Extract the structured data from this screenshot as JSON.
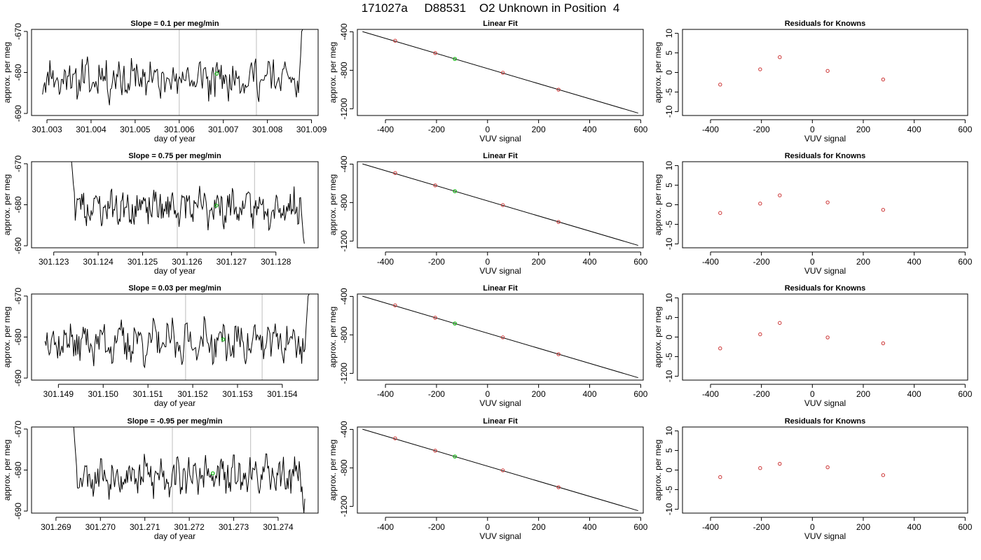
{
  "page_title": "171027a     D88531    O2 Unknown in Position  4",
  "colors": {
    "trace": "#000000",
    "fit_line": "#000000",
    "known_points": "#cc3333",
    "unknown_point": "#22bb22",
    "marker_lines": "#c8c8c8",
    "axes": "#000000"
  },
  "chart_data": [
    {
      "type": "line",
      "row": 1,
      "title": "Slope =  0.1  per meg/min",
      "xlabel": "day of year",
      "ylabel": "approx. per meg",
      "xlim": [
        301.00265,
        301.00915
      ],
      "ylim": [
        -690.5,
        -669.5
      ],
      "xticks": [
        "301.003",
        "301.004",
        "301.005",
        "301.006",
        "301.007",
        "301.008",
        "301.009"
      ],
      "yticks": [
        "-670",
        "-680",
        "-690"
      ],
      "markers_x": [
        301.006,
        301.00775
      ],
      "trace": {
        "x_start": 301.0029,
        "x_end": 301.0088,
        "start": [],
        "end": [
          -685,
          -680,
          -676,
          -670,
          -666
        ],
        "mean": -681.5,
        "amp": 3.4,
        "seed": 11
      },
      "unknown_point": {
        "x": 301.00685,
        "y": -680.3
      }
    },
    {
      "type": "line",
      "row": 2,
      "title": "Slope =  0.75  per meg/min",
      "xlabel": "day of year",
      "ylabel": "approx. per meg",
      "xlim": [
        301.1225,
        301.12895
      ],
      "ylim": [
        -690.5,
        -669.5
      ],
      "xticks": [
        "301.123",
        "301.124",
        "301.125",
        "301.126",
        "301.127",
        "301.128"
      ],
      "yticks": [
        "-670",
        "-680",
        "-690"
      ],
      "markers_x": [
        301.12578,
        301.12752
      ],
      "trace": {
        "x_start": 301.1234,
        "x_end": 301.12864,
        "start": [
          -668,
          -672,
          -675,
          -677
        ],
        "end": [
          -682,
          -685,
          -688,
          -689.5
        ],
        "mean": -680.6,
        "amp": 3.0,
        "seed": 23
      },
      "unknown_point": {
        "x": 301.12666,
        "y": -680.2
      }
    },
    {
      "type": "line",
      "row": 3,
      "title": "Slope =  0.03  per meg/min",
      "xlabel": "day of year",
      "ylabel": "approx. per meg",
      "xlim": [
        301.1484,
        301.1548
      ],
      "ylim": [
        -690.5,
        -669.5
      ],
      "xticks": [
        "301.149",
        "301.150",
        "301.151",
        "301.152",
        "301.153",
        "301.154"
      ],
      "yticks": [
        "-670",
        "-680",
        "-690"
      ],
      "markers_x": [
        301.15184,
        301.15355
      ],
      "trace": {
        "x_start": 301.1487,
        "x_end": 301.1546,
        "start": [
          -681
        ],
        "end": [
          -683,
          -678,
          -674,
          -670,
          -667
        ],
        "mean": -681.2,
        "amp": 3.4,
        "seed": 37
      },
      "unknown_point": {
        "x": 301.15268,
        "y": -680.6
      }
    },
    {
      "type": "line",
      "row": 4,
      "title": "Slope =  -0.95  per meg/min",
      "xlabel": "day of year",
      "ylabel": "approx. per meg",
      "xlim": [
        301.26845,
        301.2749
      ],
      "ylim": [
        -690.5,
        -669.5
      ],
      "xticks": [
        "301.269",
        "301.270",
        "301.271",
        "301.272",
        "301.273",
        "301.274"
      ],
      "yticks": [
        "-670",
        "-680",
        "-690"
      ],
      "markers_x": [
        301.27162,
        301.27338
      ],
      "trace": {
        "x_start": 301.2694,
        "x_end": 301.2746,
        "start": [
          -668,
          -673,
          -676,
          -679
        ],
        "end": [
          -684,
          -688,
          -691,
          -687
        ],
        "mean": -681.4,
        "amp": 3.1,
        "seed": 53
      },
      "unknown_point": {
        "x": 301.27253,
        "y": -680.8
      }
    },
    {
      "type": "scatter",
      "row": 1,
      "title": "Linear Fit",
      "xlabel": "VUV signal",
      "ylabel": "approx. per meg",
      "xlim": [
        -510,
        610
      ],
      "ylim": [
        -1270,
        -375
      ],
      "xticks": [
        -400,
        -200,
        0,
        200,
        400,
        600
      ],
      "yticks": [
        -400,
        -800,
        -1200
      ],
      "fit_line": {
        "x": [
          -490,
          590
        ],
        "y": [
          -398,
          -1245
        ]
      },
      "knowns": [
        {
          "x": -362,
          "y": -493
        },
        {
          "x": -205,
          "y": -621
        },
        {
          "x": 60,
          "y": -826
        },
        {
          "x": 278,
          "y": -1001
        }
      ],
      "unknown": {
        "x": -128,
        "y": -682
      }
    },
    {
      "type": "scatter",
      "row": 2,
      "title": "Linear Fit",
      "xlabel": "VUV signal",
      "ylabel": "approx. per meg",
      "xlim": [
        -510,
        610
      ],
      "ylim": [
        -1270,
        -375
      ],
      "xticks": [
        -400,
        -200,
        0,
        200,
        400,
        600
      ],
      "yticks": [
        -400,
        -800,
        -1200
      ],
      "fit_line": {
        "x": [
          -490,
          590
        ],
        "y": [
          -398,
          -1245
        ]
      },
      "knowns": [
        {
          "x": -362,
          "y": -493
        },
        {
          "x": -205,
          "y": -621
        },
        {
          "x": 60,
          "y": -826
        },
        {
          "x": 278,
          "y": -1001
        }
      ],
      "unknown": {
        "x": -128,
        "y": -682
      }
    },
    {
      "type": "scatter",
      "row": 3,
      "title": "Linear Fit",
      "xlabel": "VUV signal",
      "ylabel": "approx. per meg",
      "xlim": [
        -510,
        610
      ],
      "ylim": [
        -1270,
        -375
      ],
      "xticks": [
        -400,
        -200,
        0,
        200,
        400,
        600
      ],
      "yticks": [
        -400,
        -800,
        -1200
      ],
      "fit_line": {
        "x": [
          -490,
          590
        ],
        "y": [
          -398,
          -1245
        ]
      },
      "knowns": [
        {
          "x": -362,
          "y": -493
        },
        {
          "x": -205,
          "y": -621
        },
        {
          "x": 60,
          "y": -826
        },
        {
          "x": 278,
          "y": -1001
        }
      ],
      "unknown": {
        "x": -128,
        "y": -682
      }
    },
    {
      "type": "scatter",
      "row": 4,
      "title": "Linear Fit",
      "xlabel": "VUV signal",
      "ylabel": "approx. per meg",
      "xlim": [
        -510,
        610
      ],
      "ylim": [
        -1270,
        -375
      ],
      "xticks": [
        -400,
        -200,
        0,
        200,
        400,
        600
      ],
      "yticks": [
        -400,
        -800,
        -1200
      ],
      "fit_line": {
        "x": [
          -490,
          590
        ],
        "y": [
          -398,
          -1245
        ]
      },
      "knowns": [
        {
          "x": -362,
          "y": -493
        },
        {
          "x": -205,
          "y": -621
        },
        {
          "x": 60,
          "y": -826
        },
        {
          "x": 278,
          "y": -1001
        }
      ],
      "unknown": {
        "x": -128,
        "y": -682
      }
    },
    {
      "type": "scatter",
      "row": 1,
      "title": "Residuals for Knowns",
      "xlabel": "VUV signal",
      "ylabel": "approx. per meg",
      "xlim": [
        -510,
        610
      ],
      "ylim": [
        -11,
        11
      ],
      "xticks": [
        -400,
        -200,
        0,
        200,
        400,
        600
      ],
      "yticks": [
        -10,
        -5,
        0,
        5,
        10
      ],
      "points": [
        {
          "x": -362,
          "y": -3.1
        },
        {
          "x": -205,
          "y": 0.8
        },
        {
          "x": -128,
          "y": 3.9
        },
        {
          "x": 60,
          "y": 0.4
        },
        {
          "x": 278,
          "y": -1.8
        }
      ]
    },
    {
      "type": "scatter",
      "row": 2,
      "title": "Residuals for Knowns",
      "xlabel": "VUV signal",
      "ylabel": "approx. per meg",
      "xlim": [
        -510,
        610
      ],
      "ylim": [
        -11,
        11
      ],
      "xticks": [
        -400,
        -200,
        0,
        200,
        400,
        600
      ],
      "yticks": [
        -10,
        -5,
        0,
        5,
        10
      ],
      "points": [
        {
          "x": -362,
          "y": -2.1
        },
        {
          "x": -205,
          "y": 0.3
        },
        {
          "x": -128,
          "y": 2.4
        },
        {
          "x": 60,
          "y": 0.6
        },
        {
          "x": 278,
          "y": -1.3
        }
      ]
    },
    {
      "type": "scatter",
      "row": 3,
      "title": "Residuals for Knowns",
      "xlabel": "VUV signal",
      "ylabel": "approx. per meg",
      "xlim": [
        -510,
        610
      ],
      "ylim": [
        -11,
        11
      ],
      "xticks": [
        -400,
        -200,
        0,
        200,
        400,
        600
      ],
      "yticks": [
        -10,
        -5,
        0,
        5,
        10
      ],
      "points": [
        {
          "x": -362,
          "y": -2.9
        },
        {
          "x": -205,
          "y": 0.7
        },
        {
          "x": -128,
          "y": 3.6
        },
        {
          "x": 60,
          "y": -0.1
        },
        {
          "x": 278,
          "y": -1.6
        }
      ]
    },
    {
      "type": "scatter",
      "row": 4,
      "title": "Residuals for Knowns",
      "xlabel": "VUV signal",
      "ylabel": "approx. per meg",
      "xlim": [
        -510,
        610
      ],
      "ylim": [
        -11,
        11
      ],
      "xticks": [
        -400,
        -200,
        0,
        200,
        400,
        600
      ],
      "yticks": [
        -10,
        -5,
        0,
        5,
        10
      ],
      "points": [
        {
          "x": -362,
          "y": -1.8
        },
        {
          "x": -205,
          "y": 0.5
        },
        {
          "x": -128,
          "y": 1.6
        },
        {
          "x": 60,
          "y": 0.7
        },
        {
          "x": 278,
          "y": -1.3
        }
      ]
    }
  ]
}
